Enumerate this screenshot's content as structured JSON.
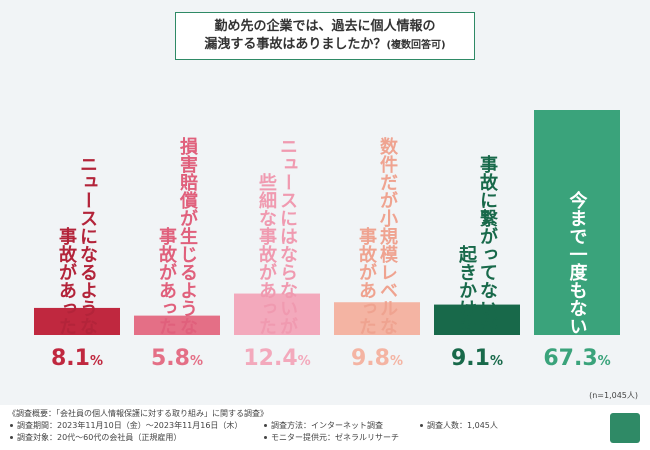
{
  "chart_data": {
    "type": "bar",
    "title": [
      "勤め先の企業では、過去に個人情報の",
      "漏洩する事故はありましたか？"
    ],
    "title_note": "(複数回答可)",
    "categories": [
      "ニュースになるような\n事故があった",
      "損害賠償が生じるような\n事故があった",
      "ニュースにはならないが\n些細な事故があった",
      "数件だが小規模レベルな\n事故があった",
      "事故に繋がってないが\n起きかけた",
      "今まで一度もない"
    ],
    "values": [
      8.1,
      5.8,
      12.4,
      9.8,
      9.1,
      67.3
    ],
    "value_labels": [
      "8.1%",
      "5.8%",
      "12.4%",
      "9.8%",
      "9.1%",
      "67.3%"
    ],
    "colors": [
      "#c0283f",
      "#e46f86",
      "#f3a9bc",
      "#f4b4a3",
      "#18694a",
      "#3aa37b"
    ],
    "label_colors": [
      "#b3243a",
      "#e0607c",
      "#f09ab0",
      "#efa390",
      "#18694a",
      "#ffffff"
    ],
    "sample_note": "(n=1,045人)"
  },
  "footer": {
    "heading": "《調査概要：「会社員の個人情報保護に対する取り組み」に関する調査》",
    "items": [
      "調査期間：2023年11月10日（金）～2023年11月16日（木）",
      "調査方法：インターネット調査",
      "調査人数：1,045人",
      "調査対象：20代～60代の会社員（正規雇用）",
      "モニター提供元：ゼネラルリサーチ"
    ]
  }
}
